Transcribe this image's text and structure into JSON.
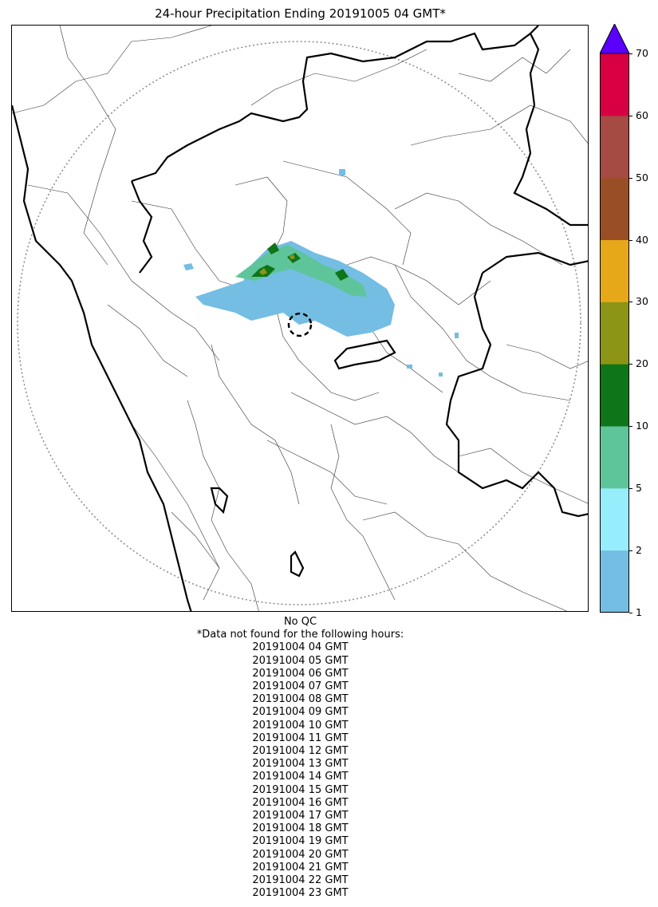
{
  "title": "24-hour Precipitation Ending 20191005 04 GMT*",
  "colorbar": {
    "ticks": [
      "1",
      "2",
      "5",
      "10",
      "20",
      "30",
      "40",
      "50",
      "60",
      "70"
    ],
    "colors": [
      "#74bde3",
      "#96eefc",
      "#5ec49a",
      "#0e7519",
      "#8c9515",
      "#e6a819",
      "#9a4e26",
      "#a54b44",
      "#d80043"
    ],
    "extend_color": "#5a00ff"
  },
  "qc_label": "No QC",
  "missing_header": "*Data not found for the following hours:",
  "missing_hours": [
    "20191004 04 GMT",
    "20191004 05 GMT",
    "20191004 06 GMT",
    "20191004 07 GMT",
    "20191004 08 GMT",
    "20191004 09 GMT",
    "20191004 10 GMT",
    "20191004 11 GMT",
    "20191004 12 GMT",
    "20191004 13 GMT",
    "20191004 14 GMT",
    "20191004 15 GMT",
    "20191004 16 GMT",
    "20191004 17 GMT",
    "20191004 18 GMT",
    "20191004 19 GMT",
    "20191004 20 GMT",
    "20191004 21 GMT",
    "20191004 22 GMT",
    "20191004 23 GMT"
  ],
  "map_colors": {
    "light_rain": "#74bde3",
    "moderate": "#5ec49a",
    "heavy": "#0e7519",
    "extreme": "#8c9515",
    "border": "#000000",
    "district": "#333333",
    "range_ring": "#888888"
  }
}
